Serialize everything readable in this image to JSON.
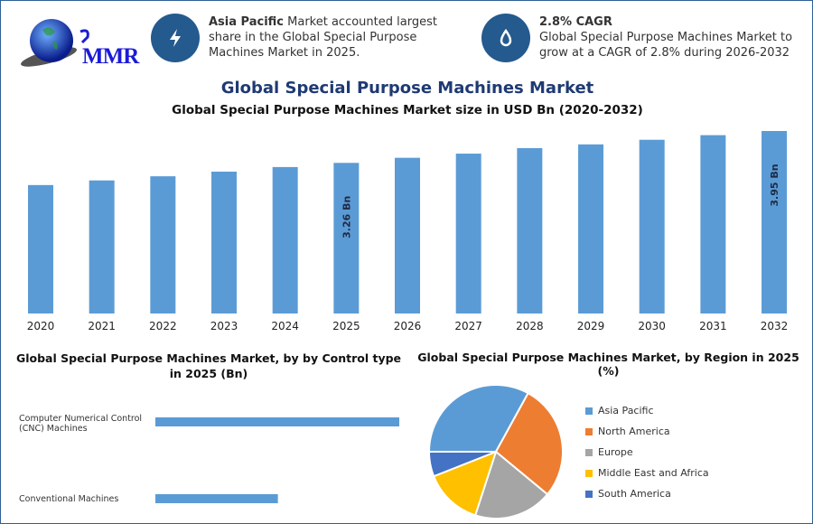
{
  "logo": {
    "text": "MMR"
  },
  "info_cards": [
    {
      "icon": "lightning-icon",
      "bold": "Asia Pacific",
      "text": " Market accounted largest share in the Global Special Purpose Machines Market in 2025."
    },
    {
      "icon": "drop-icon",
      "bold": "2.8% CAGR",
      "text": "Global Special Purpose Machines Market to grow at a CAGR of 2.8% during 2026-2032"
    }
  ],
  "main_title": "Global Special Purpose Machines Market",
  "chart_data": [
    {
      "type": "bar",
      "title": "Global Special Purpose Machines Market size in USD Bn (2020-2032)",
      "categories": [
        "2020",
        "2021",
        "2022",
        "2023",
        "2024",
        "2025",
        "2026",
        "2027",
        "2028",
        "2029",
        "2030",
        "2031",
        "2032"
      ],
      "values": [
        2.78,
        2.88,
        2.97,
        3.07,
        3.17,
        3.26,
        3.37,
        3.46,
        3.58,
        3.66,
        3.76,
        3.86,
        3.95
      ],
      "data_labels": {
        "2025": "3.26 Bn",
        "2032": "3.95 Bn"
      },
      "ylim": [
        0,
        3.95
      ],
      "color": "#5b9bd5",
      "grid": false
    },
    {
      "type": "bar",
      "orientation": "horizontal",
      "title": "Global Special Purpose Machines Market, by by Control type in 2025 (Bn)",
      "categories": [
        "Computer Numerical Control (CNC) Machines",
        "Conventional Machines"
      ],
      "values": [
        2.17,
        1.09
      ],
      "color": "#5b9bd5"
    },
    {
      "type": "pie",
      "title": "Global Special Purpose Machines Market, by Region in 2025 (%)",
      "legend": "right",
      "slices": [
        {
          "name": "Asia Pacific",
          "value": 33,
          "color": "#5b9bd5"
        },
        {
          "name": "North America",
          "value": 28,
          "color": "#ed7d31"
        },
        {
          "name": "Europe",
          "value": 19,
          "color": "#a5a5a5"
        },
        {
          "name": "Middle East and Africa",
          "value": 14,
          "color": "#ffc000"
        },
        {
          "name": "South America",
          "value": 6,
          "color": "#4472c4"
        }
      ]
    }
  ]
}
